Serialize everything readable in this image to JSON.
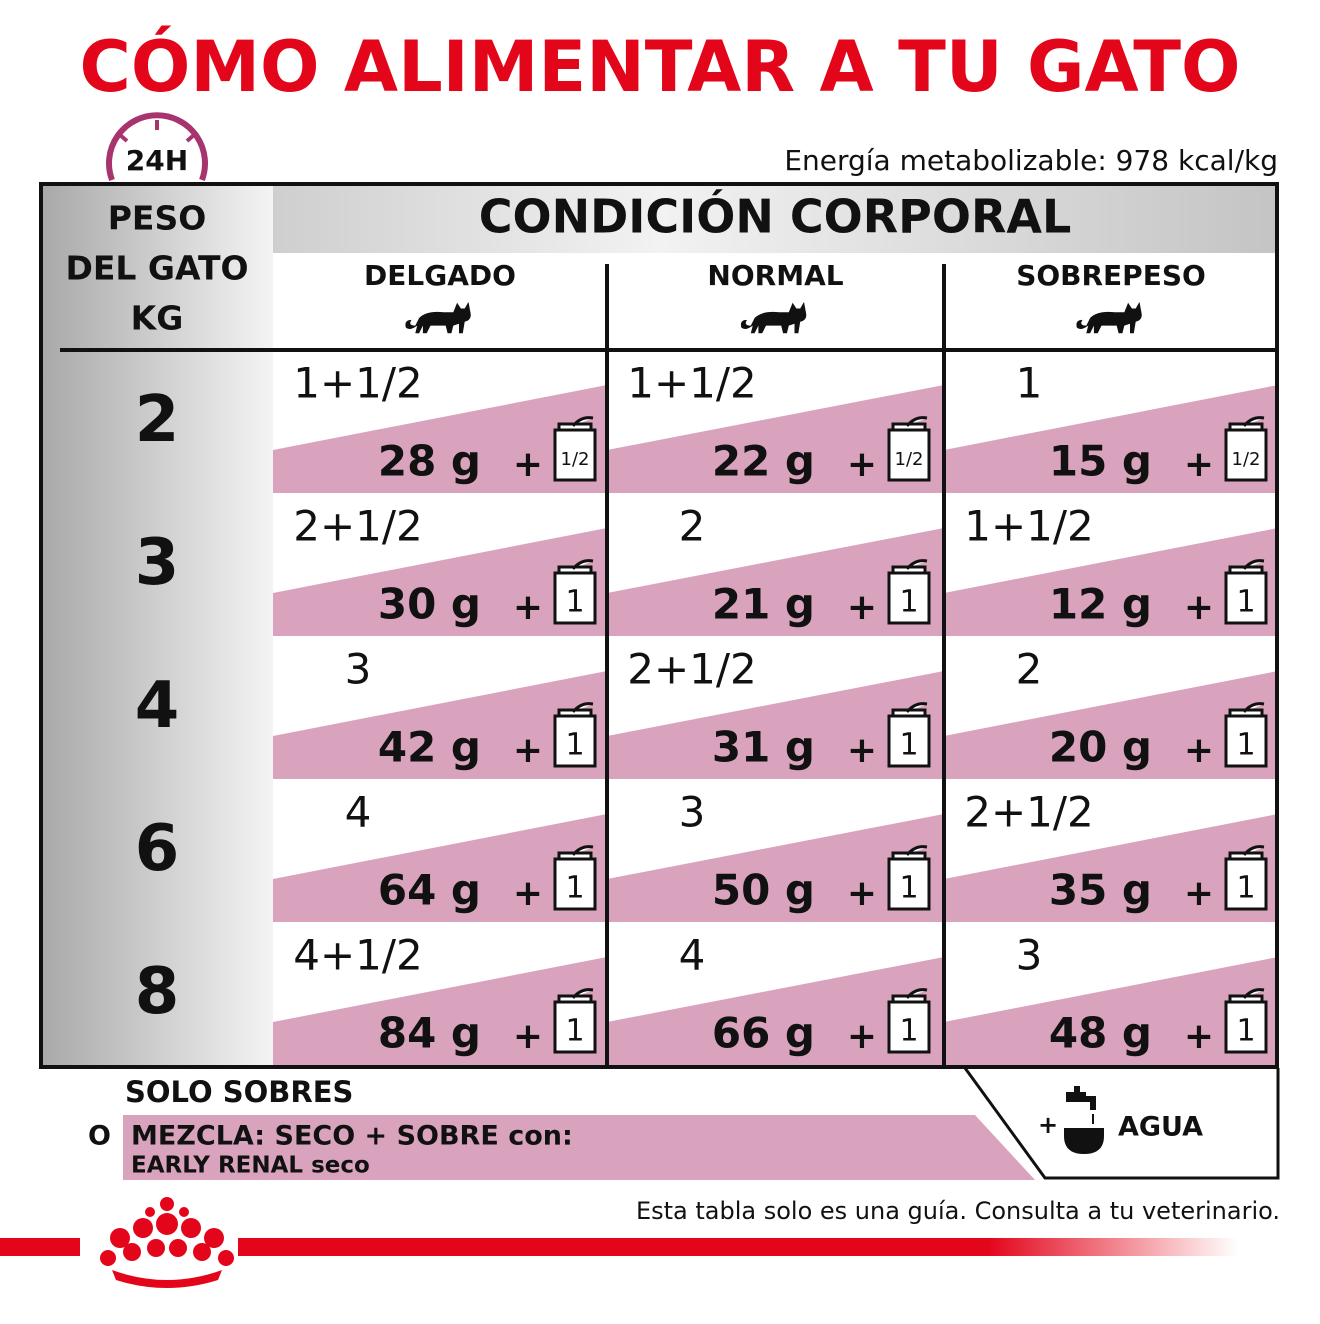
{
  "header": {
    "title": "CÓMO ALIMENTAR A TU GATO",
    "clock_label": "24H",
    "energy": "Energía metabolizable: 978 kcal/kg"
  },
  "table": {
    "weight_header": [
      "PESO",
      "DEL GATO",
      "KG"
    ],
    "condition_header": "CONDICIÓN CORPORAL",
    "columns": [
      "DELGADO",
      "NORMAL",
      "SOBREPESO"
    ],
    "plus": "+",
    "rows": [
      {
        "weight": "2",
        "cells": [
          {
            "pouches": "1+1/2",
            "grams": "28 g",
            "pouch_label": "1/2"
          },
          {
            "pouches": "1+1/2",
            "grams": "22 g",
            "pouch_label": "1/2"
          },
          {
            "pouches": "1",
            "grams": "15 g",
            "pouch_label": "1/2"
          }
        ]
      },
      {
        "weight": "3",
        "cells": [
          {
            "pouches": "2+1/2",
            "grams": "30 g",
            "pouch_label": "1"
          },
          {
            "pouches": "2",
            "grams": "21 g",
            "pouch_label": "1"
          },
          {
            "pouches": "1+1/2",
            "grams": "12 g",
            "pouch_label": "1"
          }
        ]
      },
      {
        "weight": "4",
        "cells": [
          {
            "pouches": "3",
            "grams": "42 g",
            "pouch_label": "1"
          },
          {
            "pouches": "2+1/2",
            "grams": "31 g",
            "pouch_label": "1"
          },
          {
            "pouches": "2",
            "grams": "20 g",
            "pouch_label": "1"
          }
        ]
      },
      {
        "weight": "6",
        "cells": [
          {
            "pouches": "4",
            "grams": "64 g",
            "pouch_label": "1"
          },
          {
            "pouches": "3",
            "grams": "50 g",
            "pouch_label": "1"
          },
          {
            "pouches": "2+1/2",
            "grams": "35 g",
            "pouch_label": "1"
          }
        ]
      },
      {
        "weight": "8",
        "cells": [
          {
            "pouches": "4+1/2",
            "grams": "84 g",
            "pouch_label": "1"
          },
          {
            "pouches": "4",
            "grams": "66 g",
            "pouch_label": "1"
          },
          {
            "pouches": "3",
            "grams": "48 g",
            "pouch_label": "1"
          }
        ]
      }
    ]
  },
  "legend": {
    "pouch_only": "SOLO SOBRES",
    "or": "O",
    "mix": "MEZCLA: SECO + SOBRE con:",
    "dry_product": "EARLY RENAL seco",
    "plus": "+",
    "water": "AGUA"
  },
  "footer": {
    "disclaimer": "Esta tabla solo es una guía. Consulta a tu veterinario."
  }
}
